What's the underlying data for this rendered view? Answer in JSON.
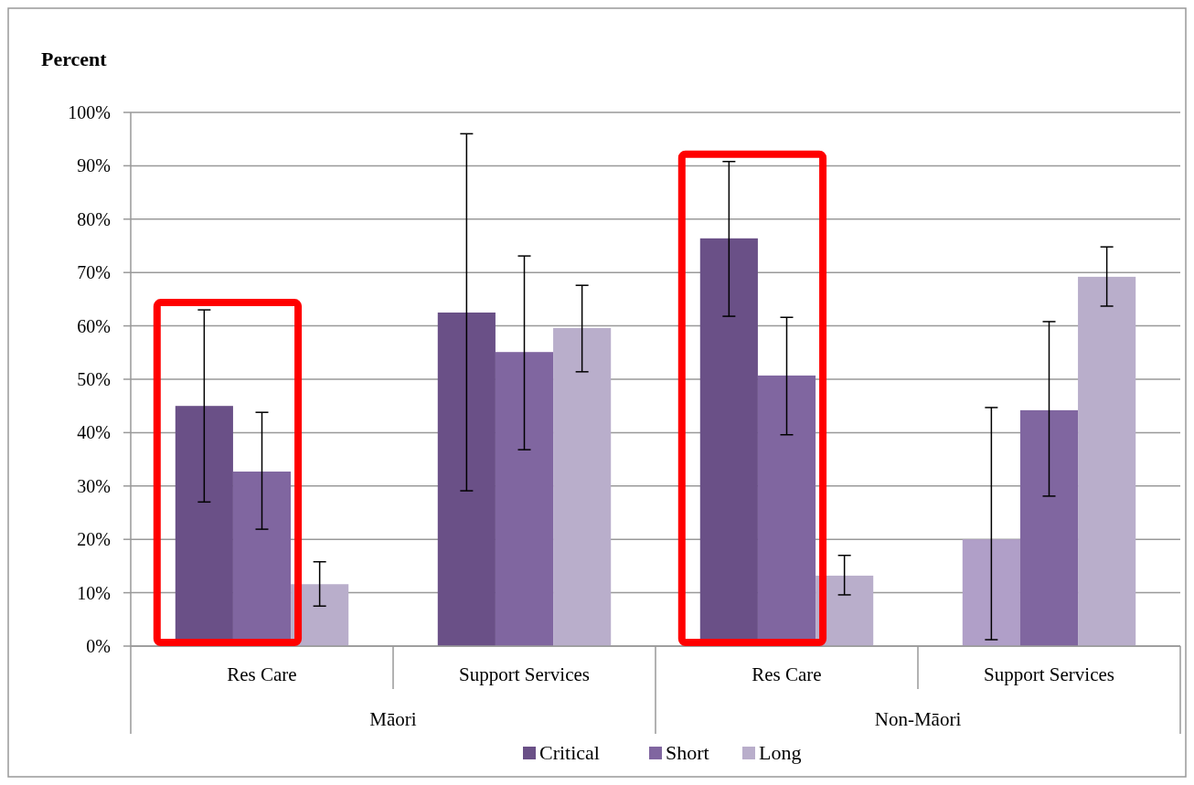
{
  "chart_data": {
    "type": "bar",
    "ylabel": "Percent",
    "categories": [
      "Res Care",
      "Support Services",
      "Res Care",
      "Support Services"
    ],
    "annotations": [
      "Māori",
      "Non-Māori"
    ],
    "ylim": [
      0,
      100
    ],
    "yticks": [
      {
        "value": 0,
        "label": "0%"
      },
      {
        "value": 10,
        "label": "10%"
      },
      {
        "value": 20,
        "label": "20%"
      },
      {
        "value": 30,
        "label": "30%"
      },
      {
        "value": 40,
        "label": "40%"
      },
      {
        "value": 50,
        "label": "50%"
      },
      {
        "value": 60,
        "label": "60%"
      },
      {
        "value": 70,
        "label": "70%"
      },
      {
        "value": 80,
        "label": "80%"
      },
      {
        "value": 90,
        "label": "90%"
      },
      {
        "value": 100,
        "label": "100%"
      }
    ],
    "grid": "y",
    "legend": "bottom",
    "series": [
      {
        "name": "Critical",
        "color": "#6a5087",
        "colors": [
          "#6a5087",
          "#6a5087",
          "#6a5087",
          "#b09fc8"
        ],
        "values": [
          45,
          62.5,
          76.4,
          20
        ],
        "errors": [
          [
            27,
            63
          ],
          [
            29.1,
            96
          ],
          [
            61.8,
            90.8
          ],
          [
            1.2,
            44.7
          ]
        ]
      },
      {
        "name": "Short",
        "color": "#8066a0",
        "values": [
          32.7,
          55.1,
          50.7,
          44.2
        ],
        "errors": [
          [
            21.9,
            43.8
          ],
          [
            36.8,
            73.1
          ],
          [
            39.6,
            61.6
          ],
          [
            28.1,
            60.8
          ]
        ]
      },
      {
        "name": "Long",
        "color": "#b9aecb",
        "values": [
          11.6,
          59.6,
          13.2,
          69.2
        ],
        "errors": [
          [
            7.5,
            15.8
          ],
          [
            51.4,
            67.6
          ],
          [
            9.6,
            17
          ],
          [
            63.7,
            74.8
          ]
        ]
      }
    ]
  }
}
